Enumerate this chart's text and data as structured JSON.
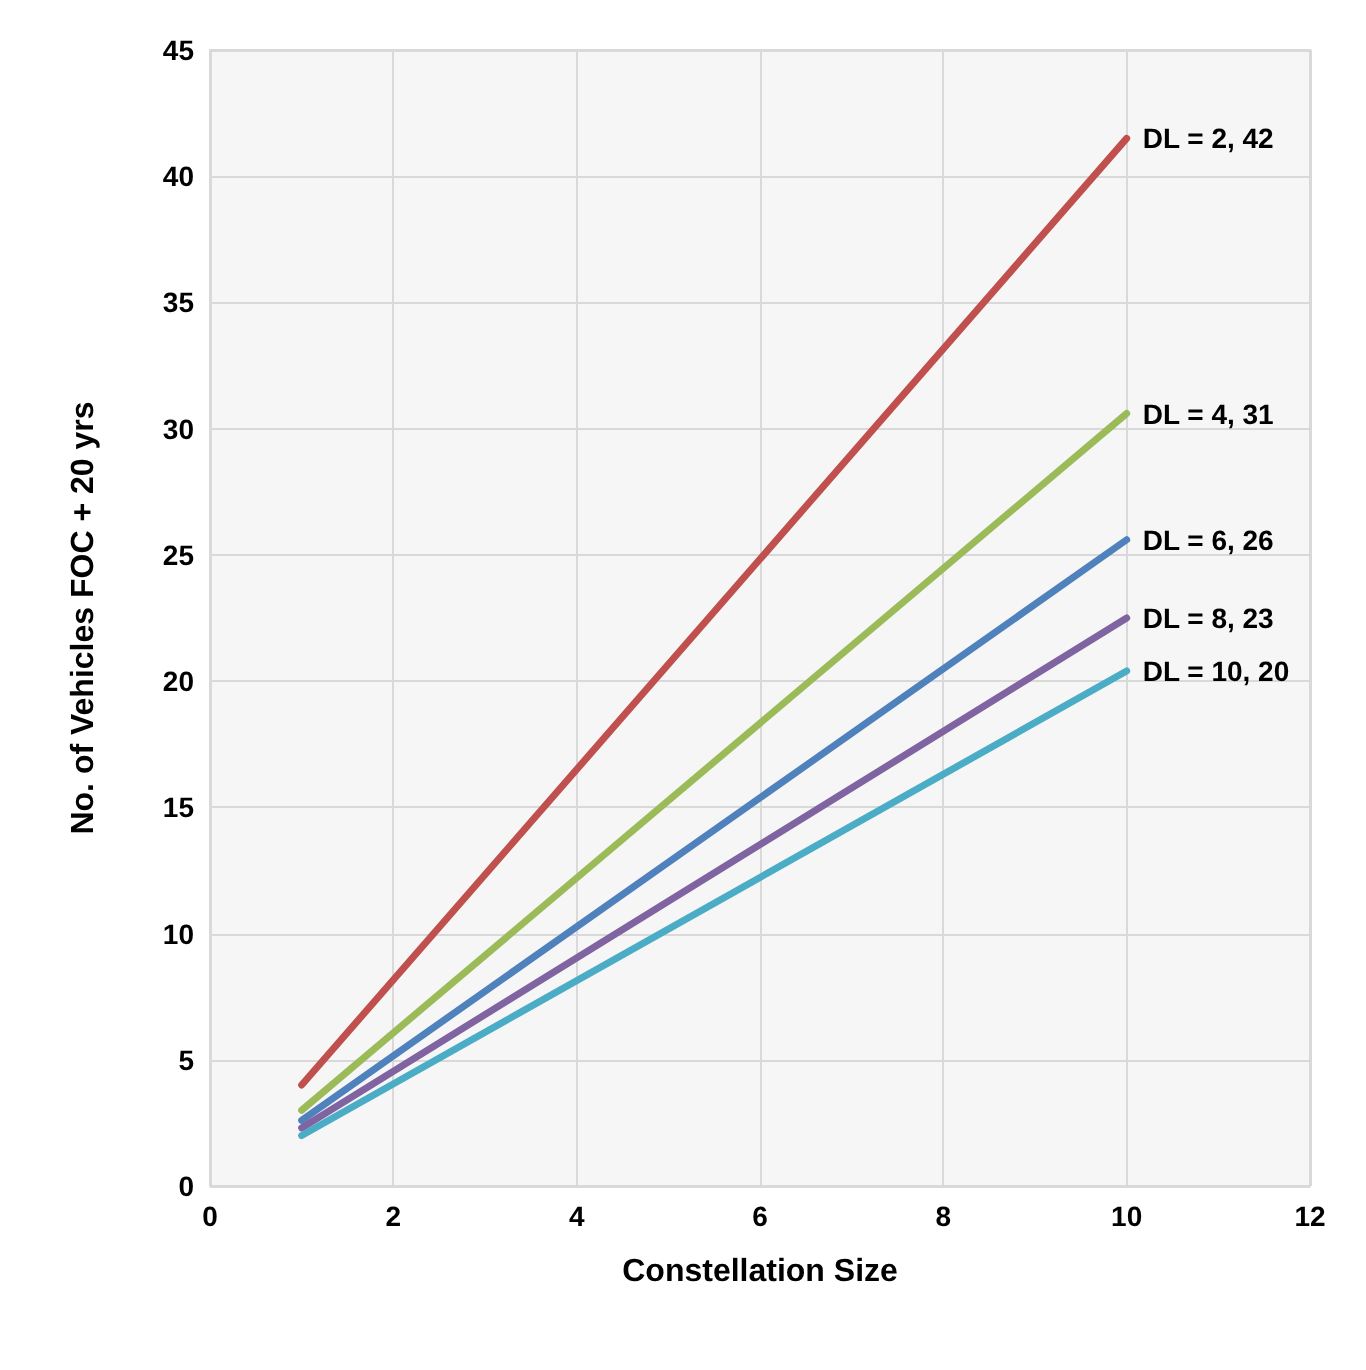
{
  "chart_data": {
    "type": "line",
    "xlabel": "Constellation Size",
    "ylabel": "No. of Vehicles FOC + 20 yrs",
    "xlim": [
      0,
      12
    ],
    "xticks": [
      0,
      2,
      4,
      6,
      8,
      10,
      12
    ],
    "ylim": [
      0,
      45
    ],
    "yticks": [
      0,
      5,
      10,
      15,
      20,
      25,
      30,
      35,
      40,
      45
    ],
    "grid": true,
    "legend": false,
    "marker": "none",
    "line_style": "solid",
    "x": [
      1,
      10
    ],
    "series": [
      {
        "name": "DL = 2, 42",
        "color": "#c0504d",
        "values": [
          4.0,
          41.5
        ]
      },
      {
        "name": "DL = 4, 31",
        "color": "#9bbb59",
        "values": [
          3.0,
          30.6
        ]
      },
      {
        "name": "DL = 6, 26",
        "color": "#4f81bd",
        "values": [
          2.6,
          25.6
        ]
      },
      {
        "name": "DL = 8, 23",
        "color": "#8064a2",
        "values": [
          2.3,
          22.5
        ]
      },
      {
        "name": "DL = 10, 20",
        "color": "#4bacc6",
        "values": [
          2.0,
          20.4
        ]
      }
    ]
  }
}
